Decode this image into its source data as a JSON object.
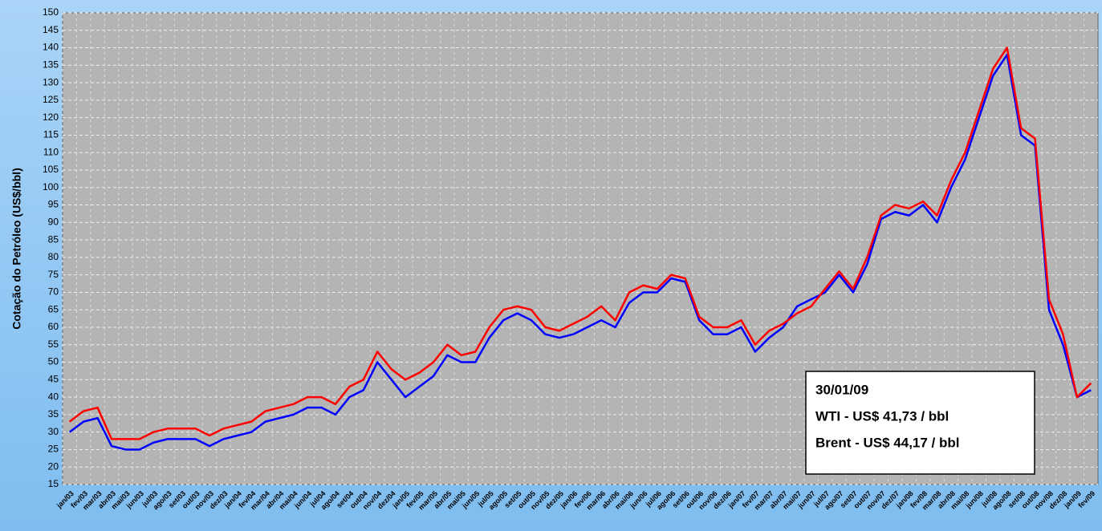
{
  "chart_data": {
    "type": "line",
    "ylabel": "Cotação do Petróleo (US$/bbl)",
    "categories": [
      "jan/03",
      "fev/03",
      "mar/03",
      "abr/03",
      "mai/03",
      "jun/03",
      "jul/03",
      "ago/03",
      "set/03",
      "out/03",
      "nov/03",
      "dez/03",
      "jan/04",
      "fev/04",
      "mar/04",
      "abr/04",
      "mai/04",
      "jun/04",
      "jul/04",
      "ago/04",
      "set/04",
      "out/04",
      "nov/04",
      "dez/04",
      "jan/05",
      "fev/05",
      "mar/05",
      "abr/05",
      "mai/05",
      "jun/05",
      "jul/05",
      "ago/05",
      "set/05",
      "out/05",
      "nov/05",
      "dez/05",
      "jan/06",
      "fev/06",
      "mar/06",
      "abr/06",
      "mai/06",
      "jun/06",
      "jul/06",
      "ago/06",
      "set/06",
      "out/06",
      "nov/06",
      "dez/06",
      "jan/07",
      "fev/07",
      "mar/07",
      "abr/07",
      "mai/07",
      "jun/07",
      "jul/07",
      "ago/07",
      "set/07",
      "out/07",
      "nov/07",
      "dez/07",
      "jan/08",
      "fev/08",
      "mar/08",
      "abr/08",
      "mai/08",
      "jun/08",
      "jul/08",
      "ago/08",
      "set/08",
      "out/08",
      "nov/08",
      "dez/08",
      "jan/09",
      "fev/09"
    ],
    "series": [
      {
        "color": "#0000ff",
        "values": [
          30,
          33,
          34,
          26,
          25,
          25,
          27,
          28,
          28,
          28,
          26,
          28,
          29,
          30,
          33,
          34,
          35,
          37,
          37,
          35,
          40,
          42,
          50,
          45,
          40,
          43,
          46,
          52,
          50,
          50,
          57,
          62,
          64,
          62,
          58,
          57,
          58,
          60,
          62,
          60,
          67,
          70,
          70,
          74,
          73,
          62,
          58,
          58,
          60,
          53,
          57,
          60,
          66,
          68,
          70,
          75,
          70,
          78,
          91,
          93,
          92,
          95,
          90,
          100,
          108,
          120,
          132,
          138,
          115,
          112,
          65,
          55,
          40,
          42
        ]
      },
      {
        "color": "#ff0000",
        "values": [
          33,
          36,
          37,
          28,
          28,
          28,
          30,
          31,
          31,
          31,
          29,
          31,
          32,
          33,
          36,
          37,
          38,
          40,
          40,
          38,
          43,
          45,
          53,
          48,
          45,
          47,
          50,
          55,
          52,
          53,
          60,
          65,
          66,
          65,
          60,
          59,
          61,
          63,
          66,
          62,
          70,
          72,
          71,
          75,
          74,
          63,
          60,
          60,
          62,
          55,
          59,
          61,
          64,
          66,
          71,
          76,
          71,
          80,
          92,
          95,
          94,
          96,
          92,
          102,
          110,
          122,
          134,
          140,
          117,
          114,
          68,
          58,
          40,
          44
        ]
      }
    ],
    "ylim": [
      15,
      150
    ],
    "yticks": [
      15,
      20,
      25,
      30,
      35,
      40,
      45,
      50,
      55,
      60,
      65,
      70,
      75,
      80,
      85,
      90,
      95,
      100,
      105,
      110,
      115,
      120,
      125,
      130,
      135,
      140,
      145,
      150
    ],
    "grid": true,
    "annotations": [
      "30/01/09",
      "WTI - US$ 41,73 / bbl",
      "Brent - US$ 44,17 / bbl"
    ]
  }
}
